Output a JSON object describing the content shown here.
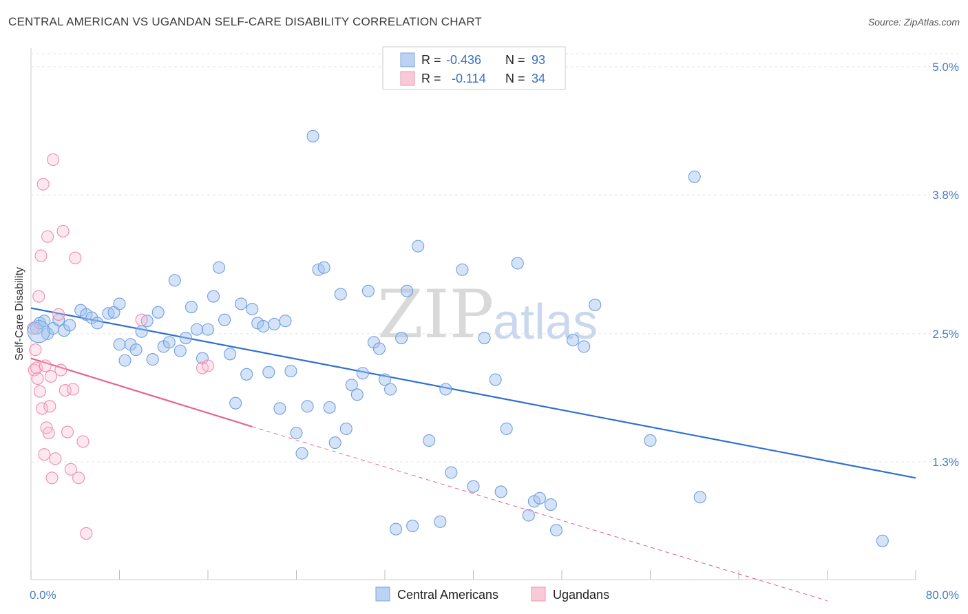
{
  "title": "CENTRAL AMERICAN VS UGANDAN SELF-CARE DISABILITY CORRELATION CHART",
  "source": "Source: ZipAtlas.com",
  "watermark": {
    "zip": "ZIP",
    "atlas": "atlas"
  },
  "chart_data": {
    "type": "scatter",
    "title": "CENTRAL AMERICAN VS UGANDAN SELF-CARE DISABILITY CORRELATION CHART",
    "xlabel": "",
    "ylabel": "Self-Care Disability",
    "xlim": [
      0,
      80
    ],
    "ylim": [
      0.0,
      5.15
    ],
    "x_tick_labels": [
      "0.0%",
      "80.0%"
    ],
    "y_ticks": [
      1.3,
      2.5,
      3.8,
      5.0
    ],
    "y_tick_labels": [
      "1.3%",
      "2.5%",
      "3.8%",
      "5.0%"
    ],
    "grid": true,
    "colors": {
      "central": "#6f9fe0",
      "uganda": "#f08caa",
      "central_line": "#2f6fd0",
      "uganda_line": "#e8638c"
    },
    "legend": {
      "position": "top-center",
      "entries": [
        {
          "r_label": "R =",
          "r": "-0.436",
          "n_label": "N =",
          "n": "93"
        },
        {
          "r_label": "R =",
          "r": "-0.114",
          "n_label": "N =",
          "n": "34"
        }
      ]
    },
    "bottom_legend": [
      "Central Americans",
      "Ugandans"
    ],
    "series": [
      {
        "name": "Central Americans",
        "points": [
          [
            0.5,
            2.55
          ],
          [
            0.8,
            2.6
          ],
          [
            1.2,
            2.62
          ],
          [
            1.5,
            2.5
          ],
          [
            2.0,
            2.55
          ],
          [
            2.5,
            2.63
          ],
          [
            3.0,
            2.53
          ],
          [
            3.5,
            2.58
          ],
          [
            4.5,
            2.72
          ],
          [
            5.0,
            2.68
          ],
          [
            5.5,
            2.65
          ],
          [
            6.0,
            2.6
          ],
          [
            7.0,
            2.69
          ],
          [
            7.5,
            2.7
          ],
          [
            8.0,
            2.78
          ],
          [
            8.0,
            2.4
          ],
          [
            8.5,
            2.25
          ],
          [
            9.0,
            2.4
          ],
          [
            9.5,
            2.35
          ],
          [
            10.0,
            2.52
          ],
          [
            10.5,
            2.62
          ],
          [
            11.0,
            2.26
          ],
          [
            11.5,
            2.7
          ],
          [
            12.0,
            2.38
          ],
          [
            12.5,
            2.42
          ],
          [
            13.0,
            3.0
          ],
          [
            13.5,
            2.34
          ],
          [
            14.0,
            2.46
          ],
          [
            14.5,
            2.75
          ],
          [
            15.0,
            2.54
          ],
          [
            15.5,
            2.27
          ],
          [
            16.0,
            2.54
          ],
          [
            16.5,
            2.85
          ],
          [
            17.0,
            3.12
          ],
          [
            17.5,
            2.63
          ],
          [
            18.0,
            2.31
          ],
          [
            18.5,
            1.85
          ],
          [
            19.0,
            2.78
          ],
          [
            19.5,
            2.12
          ],
          [
            20.0,
            2.73
          ],
          [
            20.5,
            2.6
          ],
          [
            21.0,
            2.57
          ],
          [
            21.5,
            2.14
          ],
          [
            22.0,
            2.59
          ],
          [
            22.5,
            1.8
          ],
          [
            23.0,
            2.62
          ],
          [
            23.5,
            2.15
          ],
          [
            24.0,
            1.57
          ],
          [
            24.5,
            1.38
          ],
          [
            25.0,
            1.82
          ],
          [
            25.5,
            4.35
          ],
          [
            26.0,
            3.1
          ],
          [
            26.5,
            3.12
          ],
          [
            27.0,
            1.81
          ],
          [
            27.5,
            1.48
          ],
          [
            28.0,
            2.87
          ],
          [
            28.5,
            1.61
          ],
          [
            29.0,
            2.02
          ],
          [
            29.5,
            1.93
          ],
          [
            30.0,
            2.13
          ],
          [
            30.5,
            2.9
          ],
          [
            31.0,
            2.42
          ],
          [
            31.5,
            2.36
          ],
          [
            32.0,
            2.07
          ],
          [
            32.5,
            1.98
          ],
          [
            33.0,
            0.67
          ],
          [
            33.5,
            2.46
          ],
          [
            34.0,
            2.9
          ],
          [
            34.5,
            0.7
          ],
          [
            35.0,
            3.32
          ],
          [
            36.0,
            1.5
          ],
          [
            37.0,
            0.74
          ],
          [
            37.5,
            1.98
          ],
          [
            38.0,
            1.2
          ],
          [
            39.0,
            3.1
          ],
          [
            40.0,
            1.07
          ],
          [
            41.0,
            2.46
          ],
          [
            42.0,
            2.07
          ],
          [
            42.5,
            1.02
          ],
          [
            43.0,
            1.61
          ],
          [
            44.0,
            3.16
          ],
          [
            45.0,
            0.8
          ],
          [
            45.5,
            0.93
          ],
          [
            46.0,
            0.96
          ],
          [
            47.0,
            0.9
          ],
          [
            47.5,
            0.66
          ],
          [
            49.0,
            2.44
          ],
          [
            50.0,
            2.38
          ],
          [
            51.0,
            2.77
          ],
          [
            56.0,
            1.5
          ],
          [
            60.0,
            3.97
          ],
          [
            60.5,
            0.97
          ],
          [
            77.0,
            0.56
          ]
        ]
      },
      {
        "name": "Ugandans",
        "points": [
          [
            0.2,
            2.55
          ],
          [
            0.3,
            2.16
          ],
          [
            0.4,
            2.35
          ],
          [
            0.5,
            2.18
          ],
          [
            0.6,
            2.08
          ],
          [
            0.7,
            2.85
          ],
          [
            0.8,
            1.96
          ],
          [
            0.9,
            3.23
          ],
          [
            1.0,
            1.8
          ],
          [
            1.1,
            3.9
          ],
          [
            1.2,
            1.37
          ],
          [
            1.3,
            2.2
          ],
          [
            1.4,
            1.62
          ],
          [
            1.5,
            3.41
          ],
          [
            1.6,
            1.57
          ],
          [
            1.7,
            1.82
          ],
          [
            1.8,
            2.1
          ],
          [
            1.9,
            1.15
          ],
          [
            2.0,
            4.13
          ],
          [
            2.2,
            1.33
          ],
          [
            2.5,
            2.68
          ],
          [
            2.7,
            2.16
          ],
          [
            2.9,
            3.46
          ],
          [
            3.1,
            1.97
          ],
          [
            3.3,
            1.58
          ],
          [
            3.6,
            1.23
          ],
          [
            3.8,
            1.98
          ],
          [
            4.0,
            3.21
          ],
          [
            4.3,
            1.15
          ],
          [
            4.7,
            1.49
          ],
          [
            5.0,
            0.63
          ],
          [
            10.0,
            2.63
          ],
          [
            15.5,
            2.18
          ],
          [
            16.0,
            2.2
          ]
        ]
      }
    ],
    "trendlines": [
      {
        "name": "Central Americans",
        "x": [
          0,
          80
        ],
        "y": [
          2.74,
          1.15
        ],
        "style": "solid"
      },
      {
        "name": "Ugandans",
        "x": [
          0,
          20
        ],
        "y": [
          2.27,
          1.63
        ],
        "style": "solid"
      },
      {
        "name": "Ugandans",
        "x": [
          20,
          72
        ],
        "y": [
          1.63,
          0.0
        ],
        "style": "dashed"
      }
    ]
  }
}
